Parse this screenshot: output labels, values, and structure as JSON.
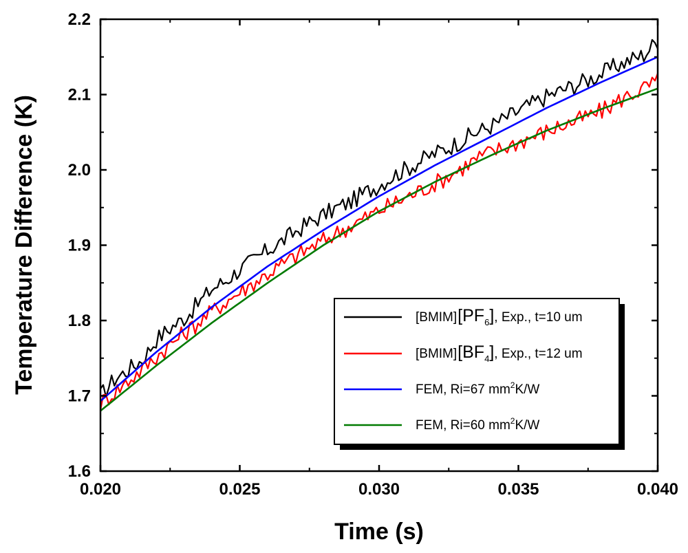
{
  "chart_data": {
    "type": "line",
    "title": "",
    "xlabel": "Time (s)",
    "ylabel": "Temperature Difference (K)",
    "xlim": [
      0.02,
      0.04
    ],
    "ylim": [
      1.6,
      2.2
    ],
    "xticks": [
      "0.020",
      "0.025",
      "0.030",
      "0.035",
      "0.040"
    ],
    "yticks": [
      "1.6",
      "1.7",
      "1.8",
      "1.9",
      "2.0",
      "2.1",
      "2.2"
    ],
    "grid": false,
    "legend_position": "bottom-right",
    "series": [
      {
        "name": "exp-pf6",
        "legend_parts": [
          "[BMIM]",
          "[PF",
          "6",
          "], Exp., t=10 um"
        ],
        "color": "#000000",
        "kind": "experimental",
        "x": [
          0.02,
          0.0205,
          0.021,
          0.0215,
          0.022,
          0.0225,
          0.023,
          0.0235,
          0.024,
          0.0245,
          0.025,
          0.0255,
          0.026,
          0.0265,
          0.027,
          0.0275,
          0.028,
          0.0285,
          0.029,
          0.0295,
          0.03,
          0.0305,
          0.031,
          0.0315,
          0.032,
          0.0325,
          0.033,
          0.0335,
          0.034,
          0.0345,
          0.035,
          0.0355,
          0.036,
          0.0365,
          0.037,
          0.0375,
          0.038,
          0.0385,
          0.039,
          0.0395,
          0.04
        ],
        "values": [
          1.7,
          1.722,
          1.735,
          1.748,
          1.775,
          1.79,
          1.803,
          1.822,
          1.842,
          1.853,
          1.868,
          1.88,
          1.893,
          1.905,
          1.918,
          1.93,
          1.94,
          1.95,
          1.958,
          1.97,
          1.98,
          1.992,
          2.002,
          2.012,
          2.022,
          2.03,
          2.04,
          2.05,
          2.058,
          2.068,
          2.078,
          2.088,
          2.097,
          2.105,
          2.112,
          2.12,
          2.128,
          2.138,
          2.146,
          2.153,
          2.172
        ]
      },
      {
        "name": "exp-bf4",
        "legend_parts": [
          "[BMIM]",
          "[BF",
          "4",
          "], Exp., t=12 um"
        ],
        "color": "#ff0000",
        "kind": "experimental",
        "x": [
          0.02,
          0.0205,
          0.021,
          0.0215,
          0.022,
          0.0225,
          0.023,
          0.0235,
          0.024,
          0.0245,
          0.025,
          0.0255,
          0.026,
          0.0265,
          0.027,
          0.0275,
          0.028,
          0.0285,
          0.029,
          0.0295,
          0.03,
          0.0305,
          0.031,
          0.0315,
          0.032,
          0.0325,
          0.033,
          0.0335,
          0.034,
          0.0345,
          0.035,
          0.0355,
          0.036,
          0.0365,
          0.037,
          0.0375,
          0.038,
          0.0385,
          0.039,
          0.0395,
          0.04
        ],
        "values": [
          1.69,
          1.705,
          1.72,
          1.735,
          1.752,
          1.768,
          1.783,
          1.797,
          1.812,
          1.825,
          1.838,
          1.85,
          1.862,
          1.874,
          1.885,
          1.896,
          1.906,
          1.917,
          1.926,
          1.936,
          1.946,
          1.955,
          1.964,
          1.973,
          1.982,
          1.992,
          2.003,
          2.015,
          2.023,
          2.03,
          2.037,
          2.044,
          2.051,
          2.058,
          2.064,
          2.071,
          2.078,
          2.09,
          2.1,
          2.108,
          2.118
        ]
      },
      {
        "name": "fem-67",
        "legend_parts": [
          "FEM, Ri=67 mm",
          "2",
          "K/W"
        ],
        "color": "#0000ff",
        "kind": "model",
        "x": [
          0.02,
          0.022,
          0.024,
          0.026,
          0.028,
          0.03,
          0.032,
          0.034,
          0.036,
          0.038,
          0.04
        ],
        "values": [
          1.693,
          1.758,
          1.818,
          1.872,
          1.92,
          1.965,
          2.006,
          2.044,
          2.082,
          2.117,
          2.15
        ]
      },
      {
        "name": "fem-60",
        "legend_parts": [
          "FEM, Ri=60 mm",
          "2",
          "K/W"
        ],
        "color": "#007a00",
        "kind": "model",
        "x": [
          0.02,
          0.022,
          0.024,
          0.026,
          0.028,
          0.03,
          0.032,
          0.034,
          0.036,
          0.038,
          0.04
        ],
        "values": [
          1.68,
          1.74,
          1.797,
          1.85,
          1.9,
          1.945,
          1.984,
          2.019,
          2.052,
          2.081,
          2.108
        ]
      }
    ]
  }
}
